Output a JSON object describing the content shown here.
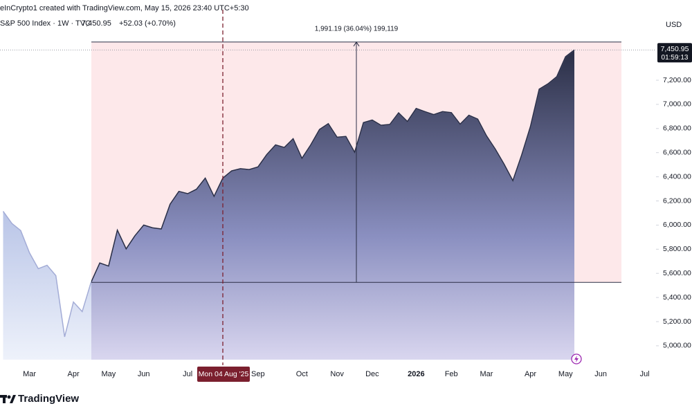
{
  "header": {
    "credit": "eInCrypto1 created with TradingView.com, May 15, 2026 23:40 UTC+5:30",
    "symbol": "S&P 500 Index · 1W · TVC",
    "change": "+52.03 (+0.70%)"
  },
  "chart_data": {
    "type": "area",
    "currency": "USD",
    "categories": [
      null,
      null,
      null,
      "Mar",
      null,
      null,
      null,
      null,
      "Apr",
      null,
      null,
      null,
      "May",
      null,
      null,
      null,
      "Jun",
      null,
      null,
      null,
      null,
      "Jul",
      null,
      null,
      null,
      null,
      null,
      null,
      null,
      "Sep",
      null,
      null,
      null,
      null,
      "Oct",
      null,
      null,
      null,
      "Nov",
      null,
      null,
      null,
      "Dec",
      null,
      null,
      null,
      null,
      "2026",
      null,
      null,
      null,
      "Feb",
      null,
      null,
      null,
      "Mar",
      null,
      null,
      null,
      null,
      "Apr",
      null,
      null,
      null,
      "May",
      null,
      null,
      null,
      "Jun",
      null,
      null,
      null,
      null,
      "Jul"
    ],
    "values": [
      6114,
      6013,
      5955,
      5770,
      5639,
      5667,
      5581,
      5074,
      5363,
      5283,
      5525,
      5686,
      5660,
      5958,
      5803,
      5912,
      6000,
      5977,
      5968,
      6173,
      6279,
      6260,
      6297,
      6389,
      6238,
      6389,
      6449,
      6467,
      6460,
      6482,
      6584,
      6664,
      6643,
      6716,
      6553,
      6664,
      6792,
      6840,
      6728,
      6734,
      6603,
      6849,
      6870,
      6827,
      6834,
      6930,
      6858,
      6966,
      6940,
      6915,
      6940,
      6932,
      6836,
      6910,
      6878,
      6740,
      6630,
      6505,
      6368,
      6580,
      6816,
      7126,
      7170,
      7230,
      7395,
      7450.95,
      null,
      null,
      null,
      null,
      null,
      null,
      null,
      null
    ],
    "last_price": {
      "value": 7450.95,
      "label": "7,450.95"
    },
    "countdown": "01:59:13",
    "crosshair_label": "Mon 04 Aug '25",
    "measure": {
      "label": "1,991.19 (36.04%) 199,119",
      "range": [
        5525,
        7516.19
      ]
    },
    "ylim": [
      4885,
      7750
    ],
    "yticks": [
      {
        "value": 5000,
        "label": "5,000.00"
      },
      {
        "value": 5200,
        "label": "5,200.00"
      },
      {
        "value": 5400,
        "label": "5,400.00"
      },
      {
        "value": 5600,
        "label": "5,600.00"
      },
      {
        "value": 5800,
        "label": "5,800.00"
      },
      {
        "value": 6000,
        "label": "6,000.00"
      },
      {
        "value": 6200,
        "label": "6,200.00"
      },
      {
        "value": 6400,
        "label": "6,400.00"
      },
      {
        "value": 6600,
        "label": "6,600.00"
      },
      {
        "value": 6800,
        "label": "6,800.00"
      },
      {
        "value": 7000,
        "label": "7,000.00"
      },
      {
        "value": 7200,
        "label": "7,200.00"
      }
    ],
    "color": "#2a2e45"
  },
  "footer": {
    "brand": "TradingView"
  }
}
